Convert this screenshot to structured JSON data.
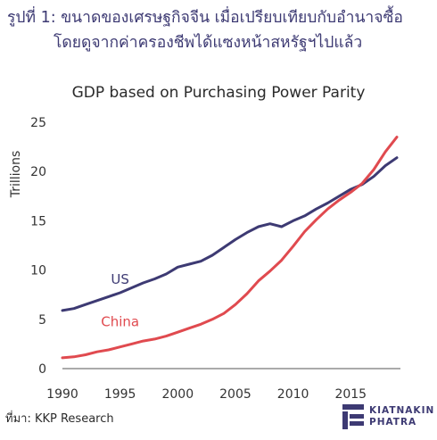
{
  "heading": {
    "line1": "รูปที่ 1: ขนาดของเศรษฐกิจจีน เมื่อเปรียบเทียบกับอำนาจซื้อ",
    "line2": "โดยดูจากค่าครองชีพได้แซงหน้าสหรัฐฯไปแล้ว"
  },
  "source": "ที่มา: KKP Research",
  "logo": {
    "line1": "KIATNAKIN",
    "line2": "PHATRA"
  },
  "colors": {
    "us": "#3d3a73",
    "china": "#e04a4f",
    "heading": "#3d3a73"
  },
  "chart_data": {
    "type": "line",
    "title": "GDP based on Purchasing Power Parity",
    "ylabel": "Trillions",
    "xlabel": "",
    "xlim": [
      1990,
      2019
    ],
    "ylim": [
      0,
      25
    ],
    "x_ticks": [
      "1990",
      "1995",
      "2000",
      "2005",
      "2010",
      "2015"
    ],
    "y_ticks": [
      "0",
      "5",
      "10",
      "15",
      "20",
      "25"
    ],
    "grid": false,
    "legend": "inline labels",
    "x": [
      1990,
      1991,
      1992,
      1993,
      1994,
      1995,
      1996,
      1997,
      1998,
      1999,
      2000,
      2001,
      2002,
      2003,
      2004,
      2005,
      2006,
      2007,
      2008,
      2009,
      2010,
      2011,
      2012,
      2013,
      2014,
      2015,
      2016,
      2017,
      2018,
      2019
    ],
    "series": [
      {
        "name": "US",
        "values": [
          5.9,
          6.1,
          6.5,
          6.9,
          7.3,
          7.7,
          8.2,
          8.7,
          9.1,
          9.6,
          10.3,
          10.6,
          10.9,
          11.5,
          12.3,
          13.1,
          13.8,
          14.4,
          14.7,
          14.4,
          15.0,
          15.5,
          16.2,
          16.8,
          17.5,
          18.2,
          18.7,
          19.5,
          20.6,
          21.4
        ]
      },
      {
        "name": "China",
        "values": [
          1.1,
          1.2,
          1.4,
          1.7,
          1.9,
          2.2,
          2.5,
          2.8,
          3.0,
          3.3,
          3.7,
          4.1,
          4.5,
          5.0,
          5.6,
          6.5,
          7.6,
          8.9,
          9.9,
          11.0,
          12.4,
          13.9,
          15.1,
          16.2,
          17.1,
          17.9,
          18.8,
          20.2,
          22.0,
          23.5
        ]
      }
    ]
  }
}
